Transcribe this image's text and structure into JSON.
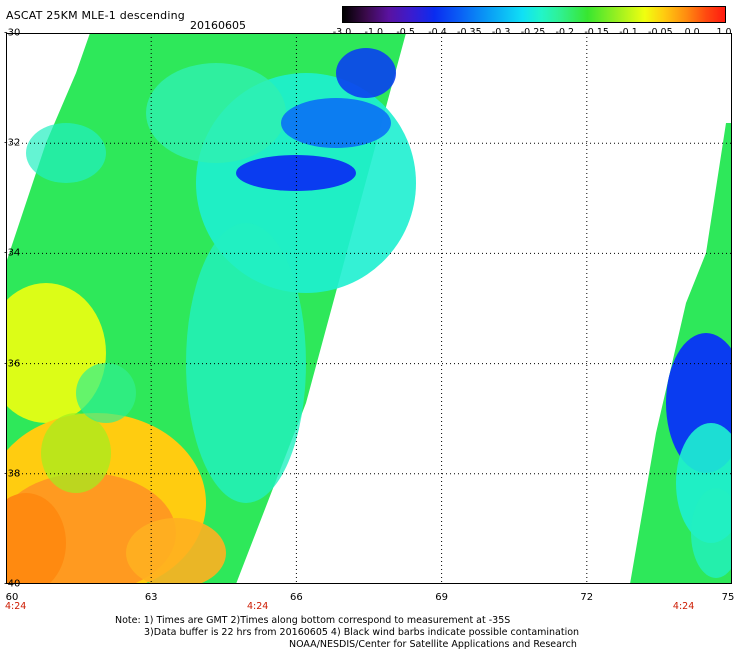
{
  "title": "ASCAT 25KM MLE-1 descending",
  "date": "20160605",
  "colorbar": {
    "labels": [
      "-3.0",
      "-1.0",
      "-0.5",
      "-0.4",
      "-0.35",
      "-0.3",
      "-0.25",
      "-0.2",
      "-0.15",
      "-0.1",
      "-0.05",
      "0.0",
      "1.0"
    ],
    "colors": [
      "#000000",
      "#5a12a0",
      "#0a2cf0",
      "#0a9cf5",
      "#10e0f5",
      "#30f090",
      "#38e630",
      "#9cf020",
      "#f0ff10",
      "#ffcc10",
      "#ff8a10",
      "#ff1a10"
    ]
  },
  "map": {
    "lat_labels": [
      "-30",
      "-32",
      "-34",
      "-36",
      "-38",
      "-40"
    ],
    "lon_labels": [
      "60",
      "63",
      "66",
      "69",
      "72",
      "75"
    ],
    "lat_range": [
      -40,
      -30
    ],
    "lon_range": [
      60,
      75
    ],
    "time_labels": [
      {
        "text": "4:24",
        "lon": 60.2
      },
      {
        "text": "4:24",
        "lon": 65.2
      },
      {
        "text": "4:24",
        "lon": 74.0
      }
    ]
  },
  "notes": [
    "Note: 1) Times are GMT 2)Times along bottom correspond to measurement at -35S",
    "3)Data buffer is 22 hrs from 20160605 4) Black wind barbs indicate possible contamination",
    "NOAA/NESDIS/Center for Satellite Applications and Research"
  ]
}
